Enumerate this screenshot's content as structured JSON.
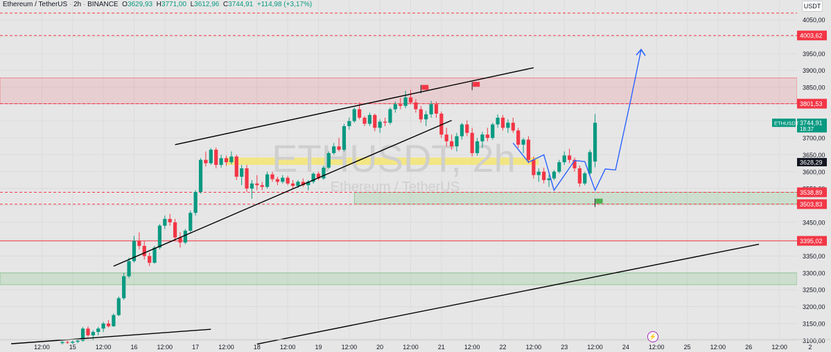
{
  "header": {
    "symbol": "Ethereum / TetherUS",
    "interval": "2h",
    "exchange": "BINANCE",
    "open_label": "O",
    "open": "3629,93",
    "high_label": "H",
    "high": "3771,00",
    "low_label": "L",
    "low": "3612,96",
    "close_label": "C",
    "close": "3744,91",
    "change": "+114,98 (+3,17%)"
  },
  "currency_button": "USDT",
  "watermark": {
    "ticker": "ETHUSDT, 2h",
    "name": "Ethereum / TetherUS"
  },
  "colors": {
    "up": "#089981",
    "down": "#f23645",
    "resistance": "#f23645",
    "support_zone": "#4caf50",
    "highlight": "#f5e663",
    "projection": "#2962ff",
    "trend": "#000000"
  },
  "chart_data": {
    "type": "candlestick",
    "ylim": [
      3080,
      4080
    ],
    "y_ticks": [
      "3100,00",
      "3150,00",
      "3200,00",
      "3250,00",
      "3300,00",
      "3350,00",
      "3400,00",
      "3450,00",
      "3500,00",
      "3550,00",
      "3600,00",
      "3650,00",
      "3700,00",
      "3750,00",
      "3800,00",
      "3850,00",
      "3900,00",
      "3950,00",
      "4000,00",
      "4050,00"
    ],
    "x_ticks": [
      {
        "label": "12:00",
        "i": -4
      },
      {
        "label": "15",
        "i": 2
      },
      {
        "label": "12:00",
        "i": 8
      },
      {
        "label": "16",
        "i": 14
      },
      {
        "label": "12:00",
        "i": 20
      },
      {
        "label": "17",
        "i": 26
      },
      {
        "label": "12:00",
        "i": 32
      },
      {
        "label": "18",
        "i": 38
      },
      {
        "label": "12:00",
        "i": 44
      },
      {
        "label": "19",
        "i": 50
      },
      {
        "label": "12:00",
        "i": 56
      },
      {
        "label": "20",
        "i": 62
      },
      {
        "label": "12:00",
        "i": 68
      },
      {
        "label": "21",
        "i": 74
      },
      {
        "label": "12:00",
        "i": 80
      },
      {
        "label": "22",
        "i": 86
      },
      {
        "label": "12:00",
        "i": 92
      },
      {
        "label": "23",
        "i": 98
      },
      {
        "label": "12:00",
        "i": 104
      },
      {
        "label": "24",
        "i": 110
      },
      {
        "label": "12:00",
        "i": 116
      },
      {
        "label": "25",
        "i": 122
      },
      {
        "label": "12:00",
        "i": 128
      },
      {
        "label": "26",
        "i": 134
      },
      {
        "label": "12:00",
        "i": 140
      },
      {
        "label": "2",
        "i": 146
      }
    ],
    "candles": [
      {
        "o": 3092,
        "h": 3098,
        "l": 3088,
        "c": 3095
      },
      {
        "o": 3095,
        "h": 3099,
        "l": 3090,
        "c": 3093
      },
      {
        "o": 3093,
        "h": 3100,
        "l": 3089,
        "c": 3096
      },
      {
        "o": 3096,
        "h": 3102,
        "l": 3092,
        "c": 3099
      },
      {
        "o": 3099,
        "h": 3140,
        "l": 3096,
        "c": 3135
      },
      {
        "o": 3135,
        "h": 3142,
        "l": 3110,
        "c": 3115
      },
      {
        "o": 3115,
        "h": 3130,
        "l": 3100,
        "c": 3125
      },
      {
        "o": 3125,
        "h": 3140,
        "l": 3115,
        "c": 3135
      },
      {
        "o": 3135,
        "h": 3155,
        "l": 3125,
        "c": 3150
      },
      {
        "o": 3150,
        "h": 3160,
        "l": 3138,
        "c": 3142
      },
      {
        "o": 3142,
        "h": 3180,
        "l": 3140,
        "c": 3175
      },
      {
        "o": 3175,
        "h": 3230,
        "l": 3172,
        "c": 3225
      },
      {
        "o": 3225,
        "h": 3300,
        "l": 3220,
        "c": 3290
      },
      {
        "o": 3290,
        "h": 3345,
        "l": 3285,
        "c": 3335
      },
      {
        "o": 3335,
        "h": 3410,
        "l": 3330,
        "c": 3395
      },
      {
        "o": 3395,
        "h": 3420,
        "l": 3370,
        "c": 3380
      },
      {
        "o": 3380,
        "h": 3395,
        "l": 3340,
        "c": 3350
      },
      {
        "o": 3350,
        "h": 3360,
        "l": 3320,
        "c": 3330
      },
      {
        "o": 3330,
        "h": 3380,
        "l": 3328,
        "c": 3375
      },
      {
        "o": 3375,
        "h": 3445,
        "l": 3370,
        "c": 3440
      },
      {
        "o": 3440,
        "h": 3470,
        "l": 3430,
        "c": 3460
      },
      {
        "o": 3460,
        "h": 3475,
        "l": 3440,
        "c": 3450
      },
      {
        "o": 3450,
        "h": 3460,
        "l": 3395,
        "c": 3405
      },
      {
        "o": 3405,
        "h": 3420,
        "l": 3375,
        "c": 3390
      },
      {
        "o": 3390,
        "h": 3430,
        "l": 3385,
        "c": 3425
      },
      {
        "o": 3425,
        "h": 3485,
        "l": 3420,
        "c": 3478
      },
      {
        "o": 3478,
        "h": 3545,
        "l": 3470,
        "c": 3540
      },
      {
        "o": 3540,
        "h": 3640,
        "l": 3535,
        "c": 3635
      },
      {
        "o": 3635,
        "h": 3660,
        "l": 3615,
        "c": 3625
      },
      {
        "o": 3625,
        "h": 3670,
        "l": 3620,
        "c": 3665
      },
      {
        "o": 3665,
        "h": 3672,
        "l": 3610,
        "c": 3620
      },
      {
        "o": 3620,
        "h": 3650,
        "l": 3612,
        "c": 3640
      },
      {
        "o": 3640,
        "h": 3648,
        "l": 3618,
        "c": 3628
      },
      {
        "o": 3628,
        "h": 3660,
        "l": 3622,
        "c": 3645
      },
      {
        "o": 3645,
        "h": 3650,
        "l": 3575,
        "c": 3585
      },
      {
        "o": 3585,
        "h": 3620,
        "l": 3560,
        "c": 3610
      },
      {
        "o": 3610,
        "h": 3620,
        "l": 3540,
        "c": 3550
      },
      {
        "o": 3550,
        "h": 3575,
        "l": 3520,
        "c": 3565
      },
      {
        "o": 3565,
        "h": 3590,
        "l": 3545,
        "c": 3560
      },
      {
        "o": 3560,
        "h": 3570,
        "l": 3545,
        "c": 3555
      },
      {
        "o": 3555,
        "h": 3600,
        "l": 3550,
        "c": 3592
      },
      {
        "o": 3592,
        "h": 3600,
        "l": 3570,
        "c": 3578
      },
      {
        "o": 3578,
        "h": 3585,
        "l": 3560,
        "c": 3570
      },
      {
        "o": 3570,
        "h": 3590,
        "l": 3565,
        "c": 3582
      },
      {
        "o": 3582,
        "h": 3588,
        "l": 3560,
        "c": 3565
      },
      {
        "o": 3565,
        "h": 3575,
        "l": 3550,
        "c": 3558
      },
      {
        "o": 3558,
        "h": 3575,
        "l": 3552,
        "c": 3570
      },
      {
        "o": 3570,
        "h": 3580,
        "l": 3555,
        "c": 3560
      },
      {
        "o": 3560,
        "h": 3575,
        "l": 3545,
        "c": 3570
      },
      {
        "o": 3570,
        "h": 3598,
        "l": 3565,
        "c": 3594
      },
      {
        "o": 3594,
        "h": 3600,
        "l": 3575,
        "c": 3580
      },
      {
        "o": 3580,
        "h": 3618,
        "l": 3576,
        "c": 3612
      },
      {
        "o": 3612,
        "h": 3660,
        "l": 3608,
        "c": 3655
      },
      {
        "o": 3655,
        "h": 3685,
        "l": 3650,
        "c": 3675
      },
      {
        "o": 3675,
        "h": 3700,
        "l": 3660,
        "c": 3665
      },
      {
        "o": 3665,
        "h": 3742,
        "l": 3660,
        "c": 3735
      },
      {
        "o": 3735,
        "h": 3760,
        "l": 3725,
        "c": 3750
      },
      {
        "o": 3750,
        "h": 3790,
        "l": 3745,
        "c": 3785
      },
      {
        "o": 3785,
        "h": 3805,
        "l": 3755,
        "c": 3760
      },
      {
        "o": 3760,
        "h": 3765,
        "l": 3735,
        "c": 3742
      },
      {
        "o": 3742,
        "h": 3775,
        "l": 3735,
        "c": 3768
      },
      {
        "o": 3768,
        "h": 3772,
        "l": 3720,
        "c": 3730
      },
      {
        "o": 3730,
        "h": 3755,
        "l": 3715,
        "c": 3748
      },
      {
        "o": 3748,
        "h": 3760,
        "l": 3735,
        "c": 3745
      },
      {
        "o": 3745,
        "h": 3790,
        "l": 3740,
        "c": 3785
      },
      {
        "o": 3785,
        "h": 3808,
        "l": 3775,
        "c": 3800
      },
      {
        "o": 3800,
        "h": 3818,
        "l": 3785,
        "c": 3795
      },
      {
        "o": 3795,
        "h": 3840,
        "l": 3788,
        "c": 3820
      },
      {
        "o": 3820,
        "h": 3842,
        "l": 3800,
        "c": 3805
      },
      {
        "o": 3805,
        "h": 3815,
        "l": 3775,
        "c": 3785
      },
      {
        "o": 3785,
        "h": 3795,
        "l": 3745,
        "c": 3755
      },
      {
        "o": 3755,
        "h": 3780,
        "l": 3735,
        "c": 3770
      },
      {
        "o": 3770,
        "h": 3810,
        "l": 3760,
        "c": 3800
      },
      {
        "o": 3800,
        "h": 3808,
        "l": 3760,
        "c": 3772
      },
      {
        "o": 3772,
        "h": 3778,
        "l": 3700,
        "c": 3710
      },
      {
        "o": 3710,
        "h": 3730,
        "l": 3675,
        "c": 3690
      },
      {
        "o": 3690,
        "h": 3710,
        "l": 3665,
        "c": 3675
      },
      {
        "o": 3675,
        "h": 3715,
        "l": 3660,
        "c": 3705
      },
      {
        "o": 3705,
        "h": 3745,
        "l": 3695,
        "c": 3740
      },
      {
        "o": 3740,
        "h": 3752,
        "l": 3705,
        "c": 3715
      },
      {
        "o": 3715,
        "h": 3730,
        "l": 3645,
        "c": 3655
      },
      {
        "o": 3655,
        "h": 3700,
        "l": 3648,
        "c": 3690
      },
      {
        "o": 3690,
        "h": 3718,
        "l": 3670,
        "c": 3710
      },
      {
        "o": 3710,
        "h": 3730,
        "l": 3690,
        "c": 3700
      },
      {
        "o": 3700,
        "h": 3745,
        "l": 3695,
        "c": 3740
      },
      {
        "o": 3740,
        "h": 3770,
        "l": 3730,
        "c": 3760
      },
      {
        "o": 3760,
        "h": 3768,
        "l": 3722,
        "c": 3730
      },
      {
        "o": 3730,
        "h": 3755,
        "l": 3715,
        "c": 3745
      },
      {
        "o": 3745,
        "h": 3760,
        "l": 3715,
        "c": 3722
      },
      {
        "o": 3722,
        "h": 3730,
        "l": 3670,
        "c": 3680
      },
      {
        "o": 3680,
        "h": 3700,
        "l": 3655,
        "c": 3695
      },
      {
        "o": 3695,
        "h": 3705,
        "l": 3625,
        "c": 3635
      },
      {
        "o": 3635,
        "h": 3645,
        "l": 3580,
        "c": 3590
      },
      {
        "o": 3590,
        "h": 3610,
        "l": 3570,
        "c": 3600
      },
      {
        "o": 3600,
        "h": 3612,
        "l": 3565,
        "c": 3575
      },
      {
        "o": 3575,
        "h": 3590,
        "l": 3555,
        "c": 3580
      },
      {
        "o": 3580,
        "h": 3605,
        "l": 3575,
        "c": 3600
      },
      {
        "o": 3600,
        "h": 3635,
        "l": 3595,
        "c": 3628
      },
      {
        "o": 3628,
        "h": 3660,
        "l": 3620,
        "c": 3648
      },
      {
        "o": 3648,
        "h": 3668,
        "l": 3625,
        "c": 3635
      },
      {
        "o": 3635,
        "h": 3642,
        "l": 3600,
        "c": 3610
      },
      {
        "o": 3610,
        "h": 3618,
        "l": 3555,
        "c": 3565
      },
      {
        "o": 3565,
        "h": 3600,
        "l": 3560,
        "c": 3595
      },
      {
        "o": 3595,
        "h": 3665,
        "l": 3590,
        "c": 3658
      },
      {
        "o": 3629.93,
        "h": 3771,
        "l": 3612.96,
        "c": 3744.91
      }
    ],
    "horizontal_levels": [
      {
        "price": 4070,
        "style": "dashed"
      },
      {
        "price": 4003.62,
        "label": "4003,62",
        "style": "dashed"
      },
      {
        "price": 3801.53,
        "label": "3801,53",
        "style": "dashed"
      },
      {
        "price": 3538.89,
        "label": "3538,89",
        "style": "dashed"
      },
      {
        "price": 3503.83,
        "label": "3503,83",
        "style": "dashed"
      },
      {
        "price": 3395.02,
        "label": "3395,02",
        "style": "solid"
      }
    ],
    "zones": [
      {
        "from": 3801.53,
        "to": 3878,
        "kind": "resistance"
      },
      {
        "from": 3265,
        "to": 3300,
        "kind": "support"
      },
      {
        "from": 3503.83,
        "to": 3538.89,
        "kind": "support",
        "start_i": 57
      }
    ],
    "highlight_band": {
      "from": 3620,
      "to": 3642,
      "start_i": 32,
      "end_i": 93
    },
    "trend_lines": [
      {
        "i1": -10,
        "p1": 3090,
        "i2": 29,
        "p2": 3133
      },
      {
        "i1": 10,
        "p1": 3320,
        "i2": 76,
        "p2": 3752
      },
      {
        "i1": 22,
        "p1": 3680,
        "i2": 92,
        "p2": 3908
      },
      {
        "i1": 38,
        "p1": 3089,
        "i2": 136,
        "p2": 3385
      }
    ],
    "projection_path": [
      [
        88,
        3685
      ],
      [
        91,
        3628
      ],
      [
        94,
        3650
      ],
      [
        96,
        3545
      ],
      [
        100,
        3633
      ],
      [
        102,
        3630
      ],
      [
        104,
        3545
      ],
      [
        106,
        3608
      ],
      [
        108,
        3605
      ],
      [
        111,
        3815
      ],
      [
        113,
        3962
      ]
    ],
    "arrow": true,
    "flags": [
      {
        "i": 70,
        "p": 3857,
        "color": "#f23645"
      },
      {
        "i": 80,
        "p": 3866,
        "color": "#f23645"
      },
      {
        "i": 104,
        "p": 3520,
        "color": "#4caf50"
      }
    ],
    "price_labels": [
      {
        "price": 3744.91,
        "text": "3744,91",
        "sub": "18:37",
        "color": "#089981",
        "tag": "ETHUSDT"
      },
      {
        "price": 3628.29,
        "text": "3628,29",
        "color": "#131722"
      }
    ]
  }
}
